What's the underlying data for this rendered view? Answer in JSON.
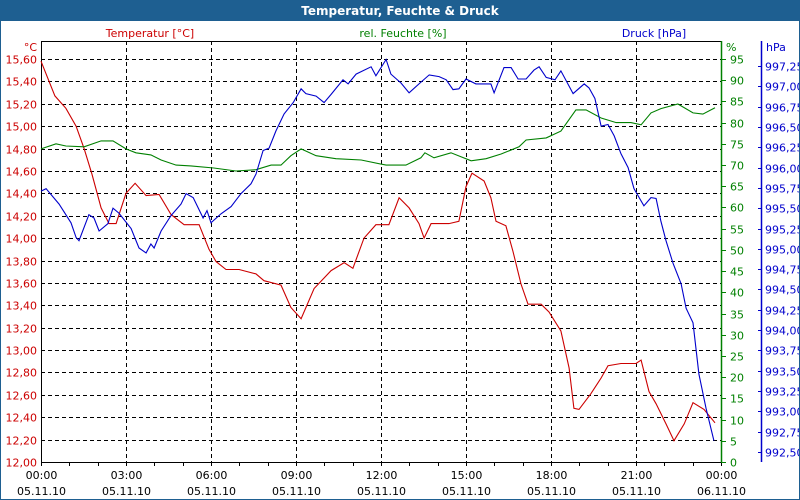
{
  "window": {
    "title": "Temperatur, Feuchte & Druck"
  },
  "colors": {
    "temperature": "#cc0000",
    "humidity": "#008000",
    "pressure": "#0000cc",
    "titlebar": "#1e5f91"
  },
  "chart_data": {
    "type": "line",
    "title": "Temperatur, Feuchte & Druck",
    "xlabel": "",
    "x_unit": "hours since 05.11.10 00:00",
    "xlim": [
      0,
      24
    ],
    "x_ticks": [
      {
        "time": "00:00",
        "date": "05.11.10"
      },
      {
        "time": "03:00",
        "date": "05.11.10"
      },
      {
        "time": "06:00",
        "date": "05.11.10"
      },
      {
        "time": "09:00",
        "date": "05.11.10"
      },
      {
        "time": "12:00",
        "date": "05.11.10"
      },
      {
        "time": "15:00",
        "date": "05.11.10"
      },
      {
        "time": "18:00",
        "date": "05.11.10"
      },
      {
        "time": "21:00",
        "date": "05.11.10"
      },
      {
        "time": "00:00",
        "date": "06.11.10"
      }
    ],
    "grid": true,
    "axes": {
      "temperature": {
        "unit": "°C",
        "legend": "Temperatur [°C]",
        "ylim": [
          12.0,
          15.6
        ],
        "ticks": [
          "15,60",
          "15,40",
          "15,20",
          "15,00",
          "14,80",
          "14,60",
          "14,40",
          "14,20",
          "14,00",
          "13,80",
          "13,60",
          "13,40",
          "13,20",
          "13,00",
          "12,80",
          "12,60",
          "12,40",
          "12,20",
          "12,00"
        ]
      },
      "humidity": {
        "unit": "%",
        "legend": "rel. Feuchte [%]",
        "ylim": [
          0,
          95
        ],
        "ticks": [
          "95",
          "90",
          "85",
          "80",
          "75",
          "70",
          "65",
          "60",
          "55",
          "50",
          "45",
          "40",
          "35",
          "30",
          "25",
          "20",
          "15",
          "10",
          "5",
          "0"
        ]
      },
      "pressure": {
        "unit": "hPa",
        "legend": "Druck [hPa]",
        "ylim": [
          992.5,
          997.25
        ],
        "ticks": [
          "997,25",
          "997,00",
          "996,75",
          "996,50",
          "996,25",
          "996,00",
          "995,75",
          "995,50",
          "995,25",
          "995,00",
          "994,75",
          "994,50",
          "994,25",
          "994,00",
          "993,75",
          "993,50",
          "993,25",
          "993,00",
          "992,75",
          "992,50"
        ]
      }
    },
    "series": [
      {
        "name": "Temperatur [°C]",
        "axis": "temperature",
        "points": [
          [
            0,
            15.58
          ],
          [
            0.49,
            15.27
          ],
          [
            0.88,
            15.16
          ],
          [
            1.24,
            15.0
          ],
          [
            1.52,
            14.8
          ],
          [
            1.8,
            14.57
          ],
          [
            2.12,
            14.27
          ],
          [
            2.4,
            14.13
          ],
          [
            2.65,
            14.13
          ],
          [
            3.0,
            14.4
          ],
          [
            3.32,
            14.49
          ],
          [
            3.71,
            14.38
          ],
          [
            4.17,
            14.39
          ],
          [
            4.59,
            14.21
          ],
          [
            5.05,
            14.12
          ],
          [
            5.58,
            14.12
          ],
          [
            5.93,
            13.9
          ],
          [
            6.18,
            13.79
          ],
          [
            6.53,
            13.72
          ],
          [
            6.99,
            13.72
          ],
          [
            7.59,
            13.68
          ],
          [
            7.87,
            13.62
          ],
          [
            8.47,
            13.58
          ],
          [
            8.82,
            13.38
          ],
          [
            9.18,
            13.28
          ],
          [
            9.64,
            13.55
          ],
          [
            10.24,
            13.71
          ],
          [
            10.7,
            13.78
          ],
          [
            11.01,
            13.73
          ],
          [
            11.4,
            14.0
          ],
          [
            11.82,
            14.12
          ],
          [
            12.28,
            14.12
          ],
          [
            12.64,
            14.36
          ],
          [
            12.99,
            14.27
          ],
          [
            13.34,
            14.13
          ],
          [
            13.52,
            14.0
          ],
          [
            13.77,
            14.13
          ],
          [
            14.4,
            14.13
          ],
          [
            14.75,
            14.15
          ],
          [
            15.0,
            14.46
          ],
          [
            15.21,
            14.58
          ],
          [
            15.64,
            14.51
          ],
          [
            15.88,
            14.36
          ],
          [
            16.06,
            14.15
          ],
          [
            16.41,
            14.11
          ],
          [
            16.66,
            13.88
          ],
          [
            16.94,
            13.59
          ],
          [
            17.19,
            13.41
          ],
          [
            17.65,
            13.41
          ],
          [
            17.93,
            13.34
          ],
          [
            18.35,
            13.17
          ],
          [
            18.64,
            12.84
          ],
          [
            18.81,
            12.48
          ],
          [
            18.99,
            12.47
          ],
          [
            19.41,
            12.61
          ],
          [
            19.77,
            12.75
          ],
          [
            20.01,
            12.86
          ],
          [
            20.47,
            12.88
          ],
          [
            21.0,
            12.88
          ],
          [
            21.18,
            12.91
          ],
          [
            21.46,
            12.63
          ],
          [
            21.71,
            12.52
          ],
          [
            22.06,
            12.34
          ],
          [
            22.34,
            12.19
          ],
          [
            22.7,
            12.34
          ],
          [
            23.01,
            12.53
          ],
          [
            23.4,
            12.47
          ],
          [
            23.79,
            12.35
          ]
        ]
      },
      {
        "name": "rel. Feuchte [%]",
        "axis": "humidity",
        "points": [
          [
            0,
            73.8
          ],
          [
            0.53,
            75
          ],
          [
            0.88,
            74.5
          ],
          [
            1.52,
            74.3
          ],
          [
            2.12,
            75.7
          ],
          [
            2.54,
            75.7
          ],
          [
            3.0,
            73.8
          ],
          [
            3.35,
            72.9
          ],
          [
            3.88,
            72.4
          ],
          [
            4.24,
            71.2
          ],
          [
            4.77,
            70
          ],
          [
            5.29,
            69.8
          ],
          [
            6.1,
            69.3
          ],
          [
            6.88,
            68.6
          ],
          [
            7.59,
            68.9
          ],
          [
            8.12,
            70
          ],
          [
            8.47,
            70
          ],
          [
            8.82,
            72.2
          ],
          [
            9.18,
            73.8
          ],
          [
            9.71,
            72.2
          ],
          [
            10.41,
            71.5
          ],
          [
            11.3,
            71.2
          ],
          [
            12.18,
            70
          ],
          [
            12.88,
            70
          ],
          [
            13.41,
            71.7
          ],
          [
            13.55,
            72.9
          ],
          [
            13.87,
            71.7
          ],
          [
            14.47,
            72.9
          ],
          [
            15.18,
            71
          ],
          [
            15.71,
            71.5
          ],
          [
            16.24,
            72.6
          ],
          [
            16.87,
            74.3
          ],
          [
            17.12,
            75.9
          ],
          [
            17.83,
            76.4
          ],
          [
            18.35,
            78
          ],
          [
            18.88,
            83
          ],
          [
            19.24,
            83
          ],
          [
            19.77,
            81.1
          ],
          [
            20.3,
            80
          ],
          [
            20.82,
            80
          ],
          [
            21.18,
            79.5
          ],
          [
            21.53,
            82.3
          ],
          [
            21.88,
            83.3
          ],
          [
            22.48,
            84.4
          ],
          [
            23.01,
            82.3
          ],
          [
            23.36,
            82
          ],
          [
            23.79,
            83.5
          ]
        ]
      },
      {
        "name": "Druck [hPa]",
        "axis": "pressure",
        "points": [
          [
            0,
            995.71
          ],
          [
            0.18,
            995.74
          ],
          [
            0.64,
            995.55
          ],
          [
            1.06,
            995.32
          ],
          [
            1.24,
            995.14
          ],
          [
            1.34,
            995.1
          ],
          [
            1.69,
            995.42
          ],
          [
            1.87,
            995.38
          ],
          [
            2.05,
            995.22
          ],
          [
            2.36,
            995.31
          ],
          [
            2.54,
            995.5
          ],
          [
            2.75,
            995.44
          ],
          [
            3.18,
            995.25
          ],
          [
            3.46,
            995.01
          ],
          [
            3.71,
            994.95
          ],
          [
            3.88,
            995.06
          ],
          [
            3.99,
            995.01
          ],
          [
            4.24,
            995.22
          ],
          [
            4.59,
            995.41
          ],
          [
            4.94,
            995.55
          ],
          [
            5.12,
            995.68
          ],
          [
            5.37,
            995.63
          ],
          [
            5.72,
            995.38
          ],
          [
            5.86,
            995.47
          ],
          [
            6.0,
            995.32
          ],
          [
            6.35,
            995.43
          ],
          [
            6.71,
            995.52
          ],
          [
            7.06,
            995.68
          ],
          [
            7.41,
            995.8
          ],
          [
            7.59,
            995.92
          ],
          [
            7.84,
            996.21
          ],
          [
            8.05,
            996.24
          ],
          [
            8.29,
            996.45
          ],
          [
            8.58,
            996.66
          ],
          [
            8.9,
            996.8
          ],
          [
            9.18,
            996.97
          ],
          [
            9.35,
            996.91
          ],
          [
            9.71,
            996.88
          ],
          [
            9.99,
            996.8
          ],
          [
            10.24,
            996.9
          ],
          [
            10.66,
            997.08
          ],
          [
            10.84,
            997.03
          ],
          [
            11.12,
            997.15
          ],
          [
            11.65,
            997.24
          ],
          [
            11.82,
            997.13
          ],
          [
            12.18,
            997.33
          ],
          [
            12.35,
            997.15
          ],
          [
            12.71,
            997.04
          ],
          [
            12.99,
            996.92
          ],
          [
            13.34,
            997.03
          ],
          [
            13.7,
            997.14
          ],
          [
            14.05,
            997.12
          ],
          [
            14.3,
            997.08
          ],
          [
            14.54,
            996.96
          ],
          [
            14.75,
            996.97
          ],
          [
            15.0,
            997.09
          ],
          [
            15.35,
            997.03
          ],
          [
            15.88,
            997.03
          ],
          [
            15.99,
            996.92
          ],
          [
            16.34,
            997.23
          ],
          [
            16.59,
            997.23
          ],
          [
            16.84,
            997.09
          ],
          [
            17.12,
            997.09
          ],
          [
            17.4,
            997.2
          ],
          [
            17.58,
            997.24
          ],
          [
            17.83,
            997.11
          ],
          [
            18.14,
            997.08
          ],
          [
            18.35,
            997.19
          ],
          [
            18.78,
            996.91
          ],
          [
            19.17,
            997.03
          ],
          [
            19.34,
            996.98
          ],
          [
            19.55,
            996.85
          ],
          [
            19.77,
            996.51
          ],
          [
            20.01,
            996.53
          ],
          [
            20.23,
            996.39
          ],
          [
            20.47,
            996.17
          ],
          [
            20.72,
            996.0
          ],
          [
            20.93,
            995.74
          ],
          [
            21.28,
            995.53
          ],
          [
            21.53,
            995.63
          ],
          [
            21.71,
            995.62
          ],
          [
            21.88,
            995.34
          ],
          [
            22.06,
            995.1
          ],
          [
            22.31,
            994.82
          ],
          [
            22.59,
            994.57
          ],
          [
            22.77,
            994.27
          ],
          [
            23.01,
            994.09
          ],
          [
            23.22,
            993.46
          ],
          [
            23.47,
            993.04
          ],
          [
            23.75,
            992.64
          ]
        ]
      }
    ]
  }
}
